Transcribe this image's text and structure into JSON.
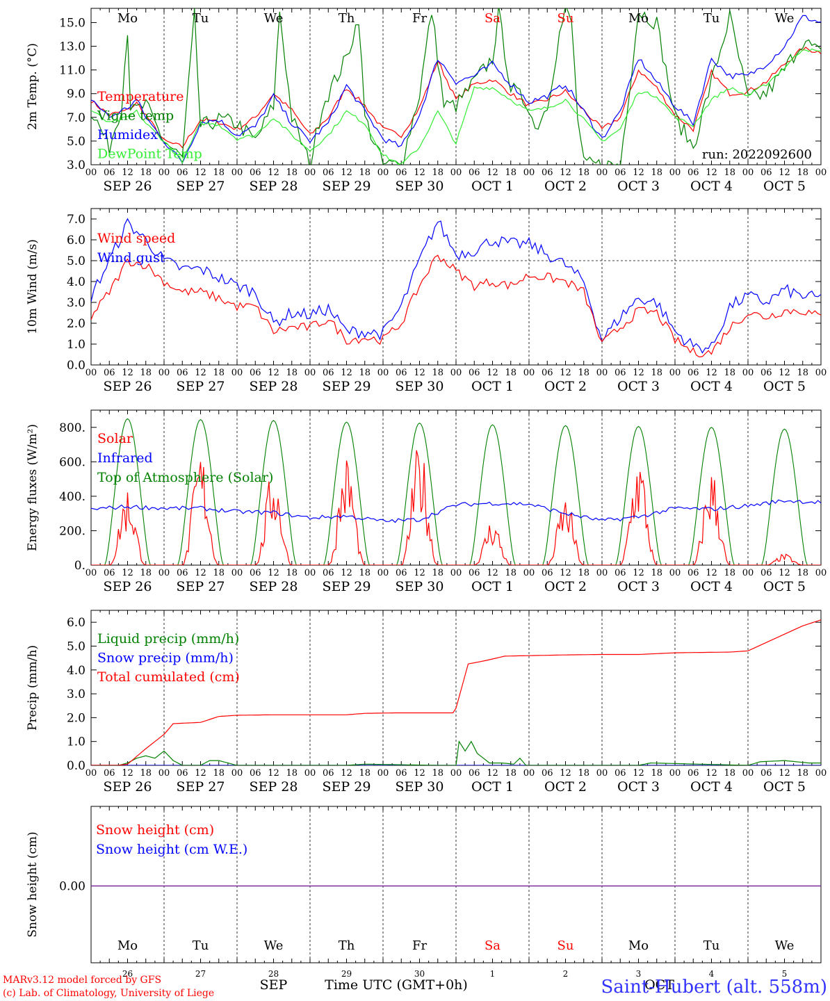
{
  "chart_data": [
    {
      "type": "line",
      "ylabel": "2m Temp. (°C)",
      "ylim": [
        3.0,
        16.2
      ],
      "yticks": [
        "3.0",
        "5.0",
        "7.0",
        "9.0",
        "11.0",
        "13.0",
        "15.0"
      ],
      "yticks_values": [
        3,
        5,
        7,
        9,
        11,
        13,
        15
      ],
      "xlim_hours": [
        0,
        240
      ],
      "weekdays": [
        "Mo",
        "Tu",
        "We",
        "Th",
        "Fr",
        "Sa",
        "Su",
        "Mo",
        "Tu",
        "We"
      ],
      "weekday_colors": [
        "#000000",
        "#000000",
        "#000000",
        "#000000",
        "#000000",
        "#ff0000",
        "#ff0000",
        "#000000",
        "#000000",
        "#000000"
      ],
      "run_label": "run: 2022092600",
      "series": [
        {
          "name": "Temperature",
          "color": "#ff0000",
          "x": [
            0,
            6,
            12,
            15,
            18,
            24,
            30,
            36,
            42,
            48,
            54,
            60,
            66,
            72,
            78,
            84,
            90,
            96,
            102,
            108,
            114,
            120,
            126,
            132,
            138,
            144,
            150,
            156,
            162,
            168,
            174,
            180,
            186,
            192,
            198,
            204,
            210,
            216,
            222,
            228,
            234,
            240
          ],
          "y": [
            8.4,
            7.2,
            7.6,
            8.2,
            7.2,
            5.0,
            4.5,
            6.8,
            6.6,
            6.0,
            7.0,
            9.0,
            7.6,
            5.5,
            7.0,
            9.5,
            8.0,
            6.0,
            5.5,
            7.8,
            11.8,
            8.5,
            9.8,
            10.2,
            9.0,
            8.0,
            8.5,
            9.2,
            7.6,
            6.0,
            7.0,
            11.0,
            9.5,
            7.2,
            6.0,
            10.8,
            9.0,
            9.2,
            10.0,
            11.5,
            12.8,
            12.5
          ]
        },
        {
          "name": "Vigne temp",
          "color": "#008000",
          "x": [
            0,
            6,
            10,
            12,
            13,
            14,
            18,
            24,
            30,
            34,
            36,
            42,
            48,
            54,
            60,
            62,
            66,
            72,
            76,
            84,
            88,
            90,
            96,
            102,
            108,
            112,
            116,
            120,
            126,
            132,
            134,
            138,
            144,
            146,
            150,
            154,
            156,
            158,
            160,
            162,
            168,
            174,
            180,
            186,
            192,
            198,
            204,
            210,
            216,
            222,
            228,
            234,
            240
          ],
          "y": [
            7.6,
            4.5,
            8.0,
            14.5,
            8.0,
            7.5,
            8.0,
            5.0,
            3.5,
            15.5,
            6.2,
            6.8,
            6.5,
            5.0,
            8.0,
            16.0,
            7.0,
            3.0,
            8.0,
            12.0,
            15.5,
            7.0,
            3.0,
            3.0,
            9.0,
            16.0,
            8.0,
            8.0,
            10.0,
            12.0,
            15.8,
            9.5,
            8.0,
            6.0,
            8.0,
            14.0,
            16.0,
            15.0,
            7.0,
            3.0,
            3.0,
            3.0,
            16.0,
            15.0,
            7.0,
            4.5,
            10.0,
            15.5,
            8.5,
            9.0,
            11.0,
            13.5,
            12.3
          ]
        },
        {
          "name": "Humidex",
          "color": "#0000ff",
          "x": [
            0,
            6,
            12,
            15,
            18,
            24,
            30,
            36,
            42,
            48,
            54,
            60,
            66,
            72,
            78,
            84,
            90,
            96,
            102,
            108,
            114,
            120,
            126,
            132,
            138,
            144,
            150,
            156,
            162,
            168,
            174,
            180,
            186,
            192,
            198,
            204,
            210,
            216,
            222,
            228,
            234,
            240
          ],
          "y": [
            8.6,
            7.0,
            7.8,
            8.5,
            7.0,
            5.0,
            3.2,
            6.6,
            6.8,
            5.5,
            6.2,
            8.8,
            6.5,
            5.0,
            6.5,
            9.7,
            7.5,
            5.2,
            4.5,
            7.2,
            12.0,
            10.0,
            10.5,
            11.5,
            9.8,
            8.3,
            8.8,
            9.8,
            7.5,
            5.2,
            7.5,
            12.0,
            10.0,
            8.0,
            6.5,
            12.0,
            10.5,
            10.5,
            11.5,
            13.0,
            15.5,
            15.0
          ]
        },
        {
          "name": "DewPoint Temp",
          "color": "#33ee33",
          "x": [
            0,
            6,
            12,
            15,
            18,
            24,
            30,
            36,
            42,
            48,
            54,
            60,
            66,
            72,
            78,
            84,
            90,
            96,
            102,
            108,
            114,
            120,
            126,
            132,
            138,
            144,
            150,
            156,
            162,
            168,
            174,
            180,
            186,
            192,
            198,
            204,
            210,
            216,
            222,
            228,
            234,
            240
          ],
          "y": [
            7.6,
            6.5,
            7.0,
            7.5,
            6.5,
            5.0,
            3.3,
            6.5,
            6.4,
            5.2,
            5.5,
            7.0,
            5.5,
            4.2,
            5.5,
            7.5,
            6.5,
            3.8,
            3.0,
            4.5,
            7.5,
            4.8,
            9.5,
            9.5,
            8.5,
            7.5,
            7.8,
            8.5,
            6.8,
            5.0,
            6.0,
            9.2,
            8.8,
            7.0,
            6.3,
            8.5,
            9.5,
            8.8,
            9.8,
            11.2,
            12.8,
            12.5
          ]
        }
      ]
    },
    {
      "type": "line",
      "ylabel": "10m Wind (m/s)",
      "ylim": [
        0,
        7.5
      ],
      "yticks": [
        "0.0",
        "1.0",
        "2.0",
        "3.0",
        "4.0",
        "5.0",
        "6.0",
        "7.0"
      ],
      "yticks_values": [
        0,
        1,
        2,
        3,
        4,
        5,
        6,
        7
      ],
      "ref_line": 5.0,
      "series": [
        {
          "name": "Wind speed",
          "color": "#ff0000",
          "x": [
            0,
            6,
            12,
            18,
            24,
            30,
            36,
            42,
            48,
            54,
            60,
            66,
            72,
            78,
            84,
            90,
            96,
            102,
            108,
            114,
            120,
            126,
            132,
            138,
            144,
            150,
            156,
            162,
            168,
            174,
            180,
            186,
            192,
            198,
            204,
            210,
            216,
            222,
            228,
            234,
            240
          ],
          "y": [
            2.3,
            3.5,
            5.0,
            4.8,
            4.0,
            3.5,
            3.5,
            3.2,
            2.8,
            2.8,
            1.6,
            1.8,
            1.8,
            2.2,
            1.2,
            1.3,
            1.2,
            2.0,
            3.8,
            5.3,
            4.5,
            3.8,
            4.0,
            3.8,
            4.3,
            4.2,
            4.0,
            3.5,
            1.0,
            1.8,
            2.6,
            2.5,
            1.2,
            0.6,
            0.6,
            1.8,
            2.5,
            2.3,
            2.6,
            2.6,
            2.3
          ]
        },
        {
          "name": "Wind gust",
          "color": "#0000ff",
          "x": [
            0,
            6,
            12,
            18,
            24,
            30,
            36,
            42,
            48,
            54,
            60,
            66,
            72,
            78,
            84,
            90,
            96,
            102,
            108,
            114,
            120,
            126,
            132,
            138,
            144,
            150,
            156,
            162,
            168,
            174,
            180,
            186,
            192,
            198,
            204,
            210,
            216,
            222,
            228,
            234,
            240
          ],
          "y": [
            3.3,
            5.0,
            6.8,
            6.0,
            5.0,
            4.6,
            4.6,
            4.2,
            3.8,
            3.5,
            2.0,
            2.5,
            2.4,
            2.7,
            1.6,
            1.6,
            1.5,
            2.8,
            5.0,
            6.9,
            5.3,
            5.5,
            6.0,
            5.8,
            5.8,
            5.3,
            4.8,
            4.0,
            1.2,
            2.3,
            3.2,
            3.0,
            1.6,
            0.9,
            0.8,
            2.8,
            3.3,
            3.0,
            3.6,
            3.3,
            3.2
          ]
        }
      ]
    },
    {
      "type": "line",
      "ylabel": "Energy fluxes (W/m²)",
      "ylim": [
        0,
        900
      ],
      "yticks": [
        "0.",
        "200.",
        "400.",
        "600.",
        "800."
      ],
      "yticks_values": [
        0,
        200,
        400,
        600,
        800
      ],
      "solar_peaks": [
        390,
        560,
        480,
        540,
        600,
        230,
        340,
        550,
        480,
        55
      ],
      "toa_peaks": [
        850,
        845,
        840,
        830,
        825,
        815,
        810,
        805,
        800,
        790
      ],
      "series": [
        {
          "name": "Solar",
          "color": "#ff0000"
        },
        {
          "name": "Infrared",
          "color": "#0000ff",
          "x": [
            0,
            12,
            24,
            36,
            48,
            60,
            72,
            84,
            96,
            108,
            120,
            132,
            144,
            156,
            168,
            180,
            192,
            204,
            216,
            228,
            240
          ],
          "y": [
            325,
            340,
            330,
            330,
            310,
            305,
            275,
            285,
            255,
            265,
            350,
            360,
            355,
            300,
            258,
            280,
            330,
            325,
            345,
            375,
            365
          ]
        },
        {
          "name": "Top of Atmosphere (Solar)",
          "color": "#008000"
        }
      ]
    },
    {
      "type": "line",
      "ylabel": "Precip (mm/h)",
      "ylim": [
        0,
        6.5
      ],
      "yticks": [
        "0.0",
        "1.0",
        "2.0",
        "3.0",
        "4.0",
        "5.0",
        "6.0"
      ],
      "yticks_values": [
        0,
        1,
        2,
        3,
        4,
        5,
        6
      ],
      "series": [
        {
          "name": "Liquid precip (mm/h)",
          "color": "#008000",
          "x": [
            0,
            9,
            12,
            15,
            18,
            21,
            24,
            27,
            30,
            36,
            39,
            42,
            45,
            48,
            60,
            84,
            90,
            114,
            120,
            121,
            123,
            125,
            127,
            129,
            131,
            135,
            139,
            141,
            143,
            150,
            180,
            184,
            216,
            220,
            228,
            236,
            240
          ],
          "y": [
            0,
            0,
            0.1,
            0.3,
            0.4,
            0.3,
            0.6,
            0.2,
            0,
            0,
            0.2,
            0.2,
            0.1,
            0,
            0,
            0,
            0.05,
            0,
            0,
            1.0,
            0.6,
            1.0,
            0.5,
            0.3,
            0.1,
            0.1,
            0.05,
            0.3,
            0,
            0,
            0,
            0.1,
            0,
            0.15,
            0.2,
            0.1,
            0.1
          ]
        },
        {
          "name": "Snow precip (mm/h)",
          "color": "#0000ff",
          "x": [
            0,
            240
          ],
          "y": [
            0,
            0
          ]
        },
        {
          "name": "Total cumulated (cm)",
          "color": "#ff0000",
          "x": [
            0,
            9,
            12,
            18,
            24,
            27,
            36,
            42,
            48,
            60,
            84,
            90,
            100,
            108,
            114,
            119,
            120,
            124,
            130,
            136,
            144,
            156,
            168,
            180,
            192,
            210,
            216,
            222,
            228,
            234,
            240
          ],
          "y": [
            0,
            0,
            0.05,
            0.7,
            1.3,
            1.75,
            1.8,
            2.05,
            2.1,
            2.12,
            2.12,
            2.18,
            2.2,
            2.2,
            2.2,
            2.2,
            2.4,
            4.25,
            4.4,
            4.58,
            4.6,
            4.63,
            4.65,
            4.65,
            4.72,
            4.75,
            4.8,
            5.15,
            5.5,
            5.85,
            6.1
          ]
        }
      ]
    },
    {
      "type": "line",
      "ylabel": "Snow height (cm)",
      "yticks": [
        "0.00"
      ],
      "series": [
        {
          "name": "Snow height (cm)",
          "color": "#ff0000"
        },
        {
          "name": "Snow height (cm W.E.)",
          "color": "#0000ff"
        }
      ],
      "xtick_day_numbers": [
        "26",
        "27",
        "28",
        "29",
        "30",
        "1",
        "2",
        "3",
        "4",
        "5"
      ],
      "month_labels": [
        "SEP",
        "OCT"
      ],
      "xlabel": "Time UTC (GMT+0h)"
    }
  ],
  "date_labels": [
    "SEP 26",
    "SEP 27",
    "SEP 28",
    "SEP 29",
    "SEP 30",
    "OCT  1",
    "OCT  2",
    "OCT  3",
    "OCT  4",
    "OCT  5"
  ],
  "hour_labels": [
    "00",
    "06",
    "12",
    "18"
  ],
  "footer": {
    "model_line1": "MARv3.12 model forced by GFS",
    "model_line2": "(c) Lab. of Climatology, University of Liege",
    "station": "Saint-Hubert (alt. 558m)"
  }
}
